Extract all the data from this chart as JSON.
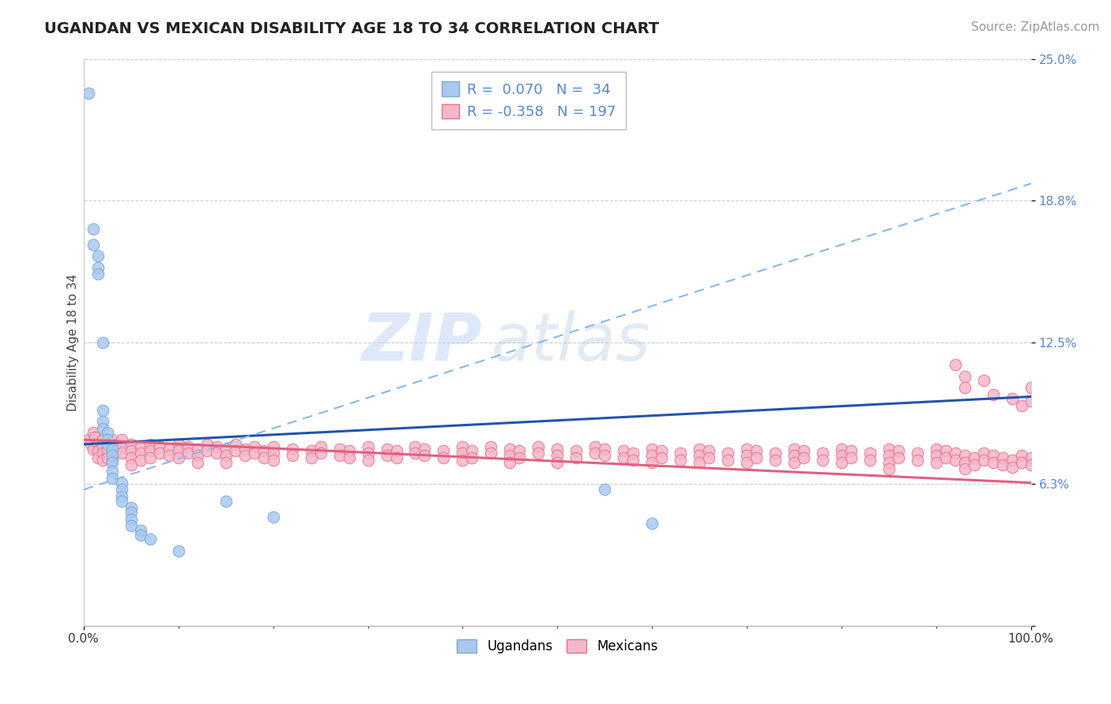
{
  "title": "UGANDAN VS MEXICAN DISABILITY AGE 18 TO 34 CORRELATION CHART",
  "source": "Source: ZipAtlas.com",
  "ylabel": "Disability Age 18 to 34",
  "xlim": [
    0,
    1.0
  ],
  "ylim": [
    0,
    0.25
  ],
  "yticks": [
    0.0,
    0.0625,
    0.125,
    0.1875,
    0.25
  ],
  "ytick_labels": [
    "",
    "6.3%",
    "12.5%",
    "18.8%",
    "25.0%"
  ],
  "xtick_labels": [
    "0.0%",
    "100.0%"
  ],
  "legend_text_1": "R =  0.070   N =  34",
  "legend_text_2": "R = -0.358   N = 197",
  "ugandan_color": "#a8c8f0",
  "ugandan_edge": "#7aaad4",
  "mexican_color": "#f4b8c8",
  "mexican_edge": "#e87090",
  "blue_line_color": "#2255aa",
  "pink_line_color": "#e06080",
  "blue_dashed_color": "#88b8e8",
  "watermark_zip": "ZIP",
  "watermark_atlas": "atlas",
  "title_color": "#222222",
  "source_color": "#999999",
  "ytick_color": "#5588cc",
  "xtick_color": "#333333",
  "grid_color": "#cccccc",
  "ylabel_color": "#444444",
  "blue_line": {
    "x0": 0.0,
    "y0": 0.08,
    "x1": 1.0,
    "y1": 0.101
  },
  "blue_dashed_line": {
    "x0": 0.0,
    "y0": 0.06,
    "x1": 1.0,
    "y1": 0.195
  },
  "pink_line": {
    "x0": 0.0,
    "y0": 0.082,
    "x1": 1.0,
    "y1": 0.063
  },
  "ugandan_points": [
    [
      0.005,
      0.235
    ],
    [
      0.01,
      0.175
    ],
    [
      0.01,
      0.168
    ],
    [
      0.015,
      0.163
    ],
    [
      0.015,
      0.158
    ],
    [
      0.015,
      0.155
    ],
    [
      0.02,
      0.125
    ],
    [
      0.02,
      0.095
    ],
    [
      0.02,
      0.09
    ],
    [
      0.02,
      0.087
    ],
    [
      0.025,
      0.085
    ],
    [
      0.025,
      0.082
    ],
    [
      0.025,
      0.08
    ],
    [
      0.03,
      0.078
    ],
    [
      0.03,
      0.075
    ],
    [
      0.03,
      0.072
    ],
    [
      0.03,
      0.068
    ],
    [
      0.03,
      0.065
    ],
    [
      0.04,
      0.063
    ],
    [
      0.04,
      0.06
    ],
    [
      0.04,
      0.057
    ],
    [
      0.04,
      0.055
    ],
    [
      0.05,
      0.052
    ],
    [
      0.05,
      0.05
    ],
    [
      0.05,
      0.047
    ],
    [
      0.05,
      0.044
    ],
    [
      0.06,
      0.042
    ],
    [
      0.06,
      0.04
    ],
    [
      0.07,
      0.038
    ],
    [
      0.1,
      0.033
    ],
    [
      0.15,
      0.055
    ],
    [
      0.2,
      0.048
    ],
    [
      0.55,
      0.06
    ],
    [
      0.6,
      0.045
    ]
  ],
  "mexican_points": [
    [
      0.005,
      0.082
    ],
    [
      0.008,
      0.08
    ],
    [
      0.01,
      0.085
    ],
    [
      0.01,
      0.078
    ],
    [
      0.012,
      0.083
    ],
    [
      0.015,
      0.08
    ],
    [
      0.015,
      0.077
    ],
    [
      0.015,
      0.074
    ],
    [
      0.02,
      0.082
    ],
    [
      0.02,
      0.079
    ],
    [
      0.02,
      0.076
    ],
    [
      0.02,
      0.073
    ],
    [
      0.025,
      0.08
    ],
    [
      0.025,
      0.077
    ],
    [
      0.025,
      0.074
    ],
    [
      0.03,
      0.082
    ],
    [
      0.03,
      0.079
    ],
    [
      0.03,
      0.076
    ],
    [
      0.03,
      0.073
    ],
    [
      0.035,
      0.08
    ],
    [
      0.035,
      0.077
    ],
    [
      0.04,
      0.082
    ],
    [
      0.04,
      0.079
    ],
    [
      0.04,
      0.076
    ],
    [
      0.05,
      0.08
    ],
    [
      0.05,
      0.077
    ],
    [
      0.05,
      0.074
    ],
    [
      0.05,
      0.071
    ],
    [
      0.06,
      0.079
    ],
    [
      0.06,
      0.076
    ],
    [
      0.06,
      0.073
    ],
    [
      0.07,
      0.08
    ],
    [
      0.07,
      0.077
    ],
    [
      0.07,
      0.074
    ],
    [
      0.08,
      0.079
    ],
    [
      0.08,
      0.076
    ],
    [
      0.09,
      0.078
    ],
    [
      0.09,
      0.075
    ],
    [
      0.1,
      0.08
    ],
    [
      0.1,
      0.077
    ],
    [
      0.1,
      0.074
    ],
    [
      0.11,
      0.079
    ],
    [
      0.11,
      0.076
    ],
    [
      0.12,
      0.078
    ],
    [
      0.12,
      0.075
    ],
    [
      0.12,
      0.072
    ],
    [
      0.13,
      0.08
    ],
    [
      0.13,
      0.077
    ],
    [
      0.14,
      0.079
    ],
    [
      0.14,
      0.076
    ],
    [
      0.15,
      0.078
    ],
    [
      0.15,
      0.075
    ],
    [
      0.15,
      0.072
    ],
    [
      0.16,
      0.08
    ],
    [
      0.16,
      0.077
    ],
    [
      0.17,
      0.078
    ],
    [
      0.17,
      0.075
    ],
    [
      0.18,
      0.079
    ],
    [
      0.18,
      0.076
    ],
    [
      0.19,
      0.077
    ],
    [
      0.19,
      0.074
    ],
    [
      0.2,
      0.079
    ],
    [
      0.2,
      0.076
    ],
    [
      0.2,
      0.073
    ],
    [
      0.22,
      0.078
    ],
    [
      0.22,
      0.075
    ],
    [
      0.24,
      0.077
    ],
    [
      0.24,
      0.074
    ],
    [
      0.25,
      0.079
    ],
    [
      0.25,
      0.076
    ],
    [
      0.27,
      0.078
    ],
    [
      0.27,
      0.075
    ],
    [
      0.28,
      0.077
    ],
    [
      0.28,
      0.074
    ],
    [
      0.3,
      0.079
    ],
    [
      0.3,
      0.076
    ],
    [
      0.3,
      0.073
    ],
    [
      0.32,
      0.078
    ],
    [
      0.32,
      0.075
    ],
    [
      0.33,
      0.077
    ],
    [
      0.33,
      0.074
    ],
    [
      0.35,
      0.079
    ],
    [
      0.35,
      0.076
    ],
    [
      0.36,
      0.078
    ],
    [
      0.36,
      0.075
    ],
    [
      0.38,
      0.077
    ],
    [
      0.38,
      0.074
    ],
    [
      0.4,
      0.079
    ],
    [
      0.4,
      0.076
    ],
    [
      0.4,
      0.073
    ],
    [
      0.41,
      0.077
    ],
    [
      0.41,
      0.074
    ],
    [
      0.43,
      0.079
    ],
    [
      0.43,
      0.076
    ],
    [
      0.45,
      0.078
    ],
    [
      0.45,
      0.075
    ],
    [
      0.45,
      0.072
    ],
    [
      0.46,
      0.077
    ],
    [
      0.46,
      0.074
    ],
    [
      0.48,
      0.079
    ],
    [
      0.48,
      0.076
    ],
    [
      0.5,
      0.078
    ],
    [
      0.5,
      0.075
    ],
    [
      0.5,
      0.072
    ],
    [
      0.52,
      0.077
    ],
    [
      0.52,
      0.074
    ],
    [
      0.54,
      0.079
    ],
    [
      0.54,
      0.076
    ],
    [
      0.55,
      0.078
    ],
    [
      0.55,
      0.075
    ],
    [
      0.57,
      0.077
    ],
    [
      0.57,
      0.074
    ],
    [
      0.58,
      0.076
    ],
    [
      0.58,
      0.073
    ],
    [
      0.6,
      0.078
    ],
    [
      0.6,
      0.075
    ],
    [
      0.6,
      0.072
    ],
    [
      0.61,
      0.077
    ],
    [
      0.61,
      0.074
    ],
    [
      0.63,
      0.076
    ],
    [
      0.63,
      0.073
    ],
    [
      0.65,
      0.078
    ],
    [
      0.65,
      0.075
    ],
    [
      0.65,
      0.072
    ],
    [
      0.66,
      0.077
    ],
    [
      0.66,
      0.074
    ],
    [
      0.68,
      0.076
    ],
    [
      0.68,
      0.073
    ],
    [
      0.7,
      0.078
    ],
    [
      0.7,
      0.075
    ],
    [
      0.7,
      0.072
    ],
    [
      0.71,
      0.077
    ],
    [
      0.71,
      0.074
    ],
    [
      0.73,
      0.076
    ],
    [
      0.73,
      0.073
    ],
    [
      0.75,
      0.078
    ],
    [
      0.75,
      0.075
    ],
    [
      0.75,
      0.072
    ],
    [
      0.76,
      0.077
    ],
    [
      0.76,
      0.074
    ],
    [
      0.78,
      0.076
    ],
    [
      0.78,
      0.073
    ],
    [
      0.8,
      0.078
    ],
    [
      0.8,
      0.075
    ],
    [
      0.8,
      0.072
    ],
    [
      0.81,
      0.077
    ],
    [
      0.81,
      0.074
    ],
    [
      0.83,
      0.076
    ],
    [
      0.83,
      0.073
    ],
    [
      0.85,
      0.078
    ],
    [
      0.85,
      0.075
    ],
    [
      0.85,
      0.072
    ],
    [
      0.85,
      0.069
    ],
    [
      0.86,
      0.077
    ],
    [
      0.86,
      0.074
    ],
    [
      0.88,
      0.076
    ],
    [
      0.88,
      0.073
    ],
    [
      0.9,
      0.078
    ],
    [
      0.9,
      0.075
    ],
    [
      0.9,
      0.072
    ],
    [
      0.91,
      0.077
    ],
    [
      0.91,
      0.074
    ],
    [
      0.92,
      0.076
    ],
    [
      0.92,
      0.073
    ],
    [
      0.93,
      0.075
    ],
    [
      0.93,
      0.072
    ],
    [
      0.93,
      0.069
    ],
    [
      0.94,
      0.074
    ],
    [
      0.94,
      0.071
    ],
    [
      0.95,
      0.076
    ],
    [
      0.95,
      0.073
    ],
    [
      0.96,
      0.075
    ],
    [
      0.96,
      0.072
    ],
    [
      0.97,
      0.074
    ],
    [
      0.97,
      0.071
    ],
    [
      0.98,
      0.073
    ],
    [
      0.98,
      0.07
    ],
    [
      0.99,
      0.075
    ],
    [
      0.99,
      0.072
    ],
    [
      1.0,
      0.074
    ],
    [
      1.0,
      0.071
    ],
    [
      0.92,
      0.115
    ],
    [
      0.93,
      0.11
    ],
    [
      0.93,
      0.105
    ],
    [
      0.95,
      0.108
    ],
    [
      0.96,
      0.102
    ],
    [
      0.98,
      0.1
    ],
    [
      0.99,
      0.097
    ],
    [
      1.0,
      0.105
    ],
    [
      1.0,
      0.099
    ]
  ],
  "title_fontsize": 14,
  "axis_label_fontsize": 11,
  "tick_fontsize": 11,
  "legend_fontsize": 13,
  "source_fontsize": 11
}
